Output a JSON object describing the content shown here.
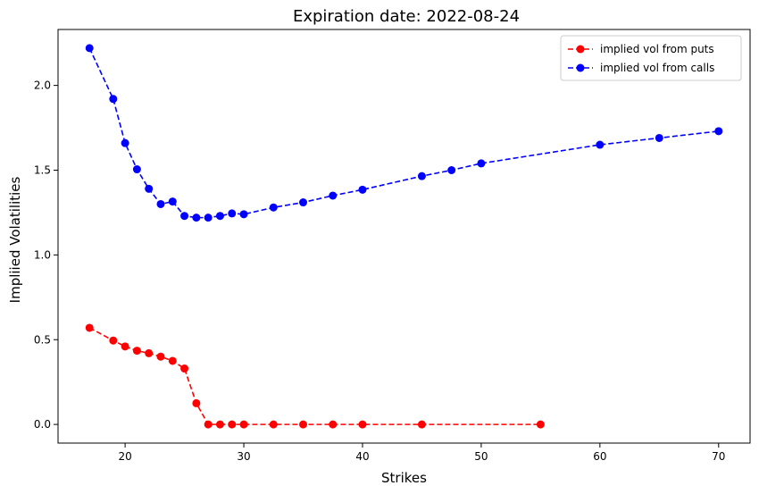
{
  "chart_data": {
    "type": "line",
    "title": "Expiration date: 2022-08-24",
    "xlabel": "Strikes",
    "ylabel": "Impliied Volatilities",
    "xlim": [
      14.35,
      72.65
    ],
    "ylim": [
      -0.11,
      2.33
    ],
    "xticks": [
      20,
      30,
      40,
      50,
      60,
      70
    ],
    "yticks": [
      0.0,
      0.5,
      1.0,
      1.5,
      2.0
    ],
    "xtick_labels": [
      "20",
      "30",
      "40",
      "50",
      "60",
      "70"
    ],
    "ytick_labels": [
      "0.0",
      "0.5",
      "1.0",
      "1.5",
      "2.0"
    ],
    "grid": false,
    "legend_position": "top-right",
    "series": [
      {
        "name": "implied vol from puts",
        "color": "#ff0000",
        "linestyle": "dashed",
        "marker": "circle",
        "x": [
          17,
          19,
          20,
          21,
          22,
          23,
          24,
          25,
          26,
          27,
          28,
          29,
          30,
          32.5,
          35,
          37.5,
          40,
          45,
          55
        ],
        "y": [
          0.57,
          0.495,
          0.46,
          0.435,
          0.42,
          0.4,
          0.375,
          0.33,
          0.125,
          0.0,
          0.0,
          0.0,
          0.0,
          0.0,
          0.0,
          0.0,
          0.0,
          0.0,
          0.0
        ]
      },
      {
        "name": "implied vol from calls",
        "color": "#0000ff",
        "linestyle": "dashed",
        "marker": "circle",
        "x": [
          17,
          19,
          20,
          21,
          22,
          23,
          24,
          25,
          26,
          27,
          28,
          29,
          30,
          32.5,
          35,
          37.5,
          40,
          45,
          47.5,
          50,
          60,
          65,
          70
        ],
        "y": [
          2.22,
          1.92,
          1.66,
          1.505,
          1.39,
          1.3,
          1.315,
          1.23,
          1.22,
          1.22,
          1.23,
          1.245,
          1.24,
          1.28,
          1.31,
          1.35,
          1.385,
          1.465,
          1.5,
          1.54,
          1.65,
          1.69,
          1.73
        ]
      }
    ]
  }
}
